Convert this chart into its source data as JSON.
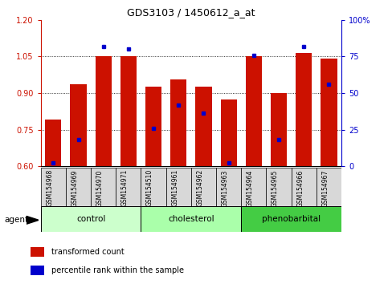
{
  "title": "GDS3103 / 1450612_a_at",
  "samples": [
    "GSM154968",
    "GSM154969",
    "GSM154970",
    "GSM154971",
    "GSM154510",
    "GSM154961",
    "GSM154962",
    "GSM154963",
    "GSM154964",
    "GSM154965",
    "GSM154966",
    "GSM154967"
  ],
  "transformed_count": [
    0.79,
    0.935,
    1.05,
    1.05,
    0.925,
    0.955,
    0.925,
    0.875,
    1.05,
    0.9,
    1.065,
    1.04
  ],
  "percentile_rank": [
    2,
    18,
    82,
    80,
    26,
    42,
    36,
    2,
    76,
    18,
    82,
    56
  ],
  "groups": [
    {
      "label": "control",
      "start": 0,
      "end": 4,
      "color": "#ccffcc"
    },
    {
      "label": "cholesterol",
      "start": 4,
      "end": 8,
      "color": "#aaffaa"
    },
    {
      "label": "phenobarbital",
      "start": 8,
      "end": 12,
      "color": "#44cc44"
    }
  ],
  "bar_color": "#cc1100",
  "dot_color": "#0000cc",
  "bar_bottom": 0.6,
  "ylim_left": [
    0.6,
    1.2
  ],
  "ylim_right": [
    0,
    100
  ],
  "yticks_left": [
    0.6,
    0.75,
    0.9,
    1.05,
    1.2
  ],
  "yticks_right": [
    0,
    25,
    50,
    75,
    100
  ],
  "ytick_labels_right": [
    "0",
    "25",
    "50",
    "75",
    "100%"
  ],
  "tick_color_left": "#cc1100",
  "tick_color_right": "#0000cc",
  "agent_label": "agent",
  "legend_items": [
    {
      "label": "transformed count",
      "color": "#cc1100"
    },
    {
      "label": "percentile rank within the sample",
      "color": "#0000cc"
    }
  ],
  "hlines": [
    0.75,
    0.9,
    1.05
  ],
  "group_colors": [
    "#ccffcc",
    "#aaffaa",
    "#44cc44"
  ],
  "sample_box_color": "#d8d8d8",
  "figsize": [
    4.83,
    3.54
  ],
  "dpi": 100
}
